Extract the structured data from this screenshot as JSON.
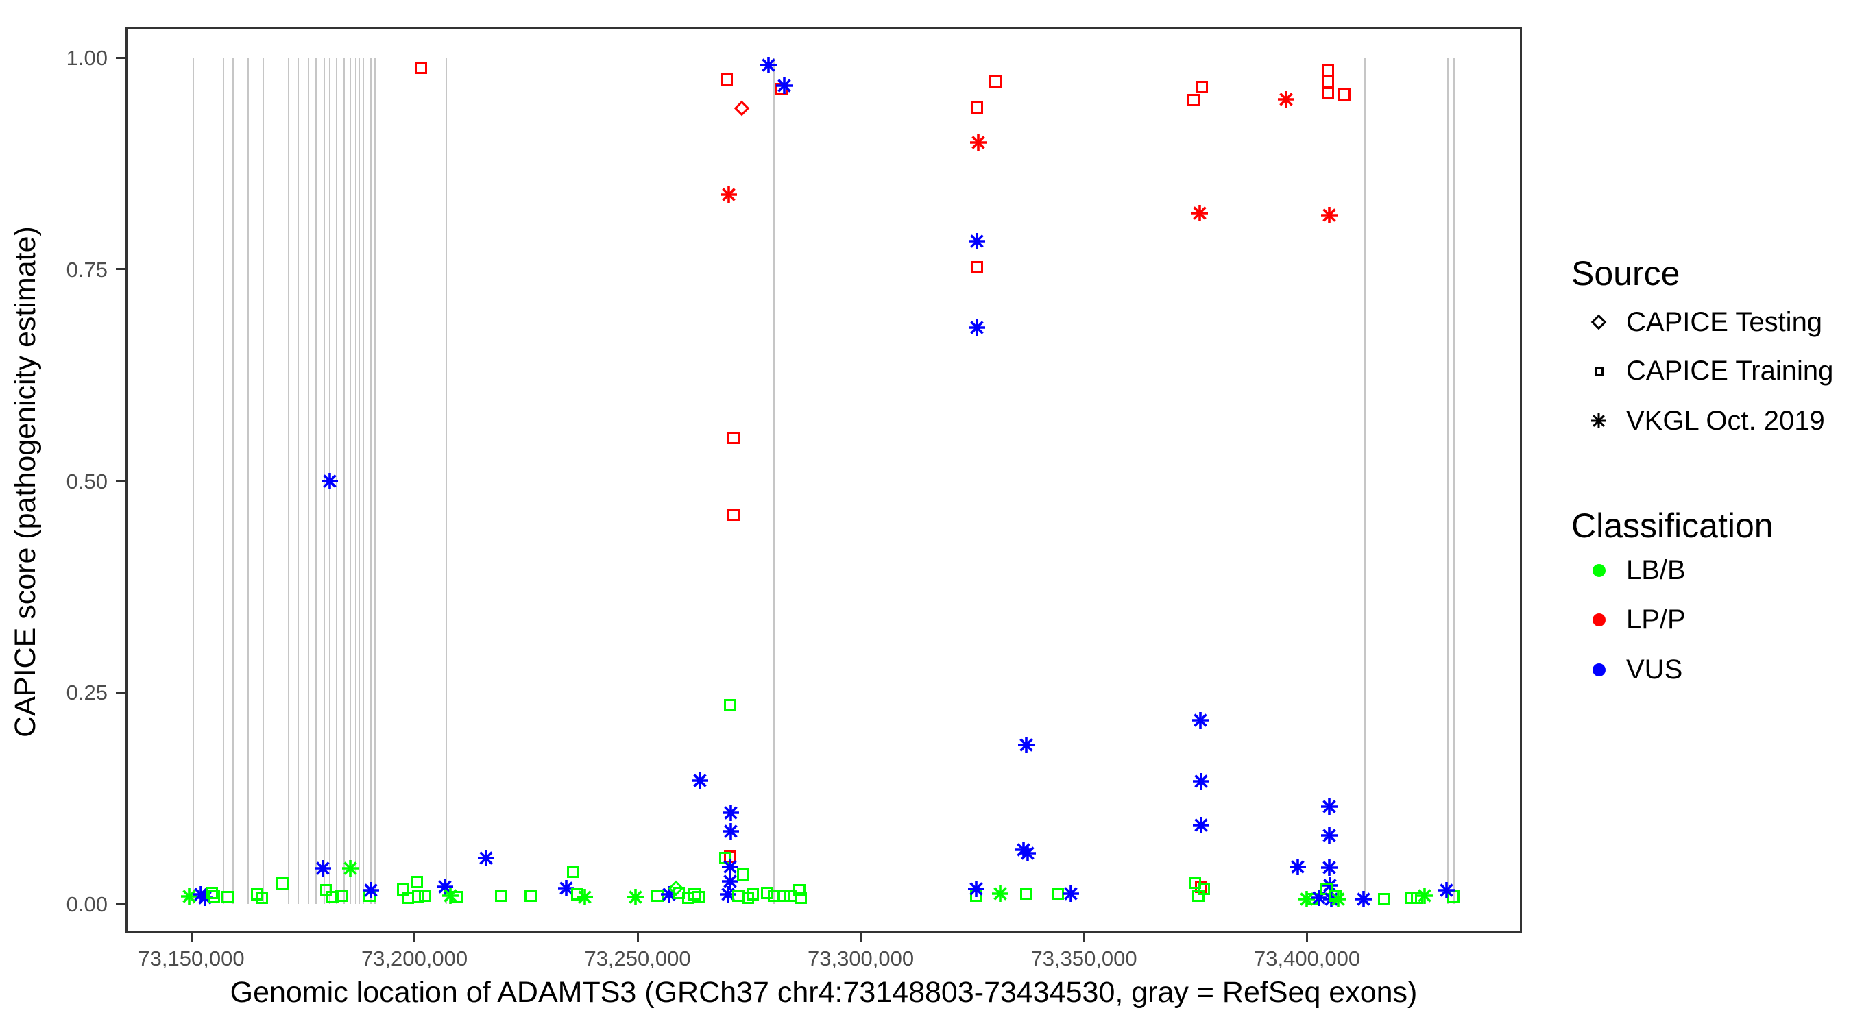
{
  "chart_data": {
    "type": "scatter",
    "title": "",
    "xlabel": "Genomic location of ADAMTS3 (GRCh37 chr4:73148803-73434530, gray = RefSeq exons)",
    "ylabel": "CAPICE score (pathogenicity estimate)",
    "xlim": [
      73134500,
      73449000
    ],
    "ylim": [
      -0.035,
      1.035
    ],
    "grid": false,
    "x_ticks": [
      {
        "value": 73150000,
        "label": "73,150,000"
      },
      {
        "value": 73200000,
        "label": "73,200,000"
      },
      {
        "value": 73250000,
        "label": "73,250,000"
      },
      {
        "value": 73300000,
        "label": "73,300,000"
      },
      {
        "value": 73350000,
        "label": "73,350,000"
      },
      {
        "value": 73400000,
        "label": "73,400,000"
      }
    ],
    "y_ticks": [
      {
        "value": 0.0,
        "label": "0.00"
      },
      {
        "value": 0.25,
        "label": "0.25"
      },
      {
        "value": 0.5,
        "label": "0.50"
      },
      {
        "value": 0.75,
        "label": "0.75"
      },
      {
        "value": 1.0,
        "label": "1.00"
      }
    ],
    "colors": {
      "LB/B": "#00ff00",
      "LP/P": "#ff0000",
      "VUS": "#0000ff",
      "exon_line": "#c6c6c6",
      "axis": "#333333",
      "tick_text": "#4d4d4d"
    },
    "shape_meaning": {
      "diamond": "CAPICE Testing",
      "square": "CAPICE Training",
      "asterisk": "VKGL Oct. 2019"
    },
    "legend": {
      "source": {
        "title": "Source",
        "items": [
          {
            "label": "CAPICE Testing",
            "shape": "diamond"
          },
          {
            "label": "CAPICE Training",
            "shape": "square"
          },
          {
            "label": "VKGL Oct. 2019",
            "shape": "asterisk"
          }
        ]
      },
      "classification": {
        "title": "Classification",
        "items": [
          {
            "label": "LB/B",
            "color": "#00ff00"
          },
          {
            "label": "LP/P",
            "color": "#ff0000"
          },
          {
            "label": "VUS",
            "color": "#0000ff"
          }
        ]
      }
    },
    "exon_lines_note": "gray vertical segments spanning score 0 to 1 = RefSeq exons",
    "exon_lines": [
      73150500,
      73157200,
      73159300,
      73162800,
      73166200,
      73171800,
      73174000,
      73176300,
      73178000,
      73179800,
      73181000,
      73182500,
      73184200,
      73185600,
      73186800,
      73187700,
      73188600,
      73190200,
      73191200,
      73207200,
      73280500,
      73413000,
      73431600,
      73433000
    ],
    "points": [
      [
        73149600,
        0.009,
        "asterisk",
        "LB/B"
      ],
      [
        73152100,
        0.011,
        "asterisk",
        "VUS"
      ],
      [
        73153000,
        0.007,
        "asterisk",
        "VUS"
      ],
      [
        73154600,
        0.013,
        "square",
        "LB/B"
      ],
      [
        73155100,
        0.009,
        "square",
        "LB/B"
      ],
      [
        73158200,
        0.008,
        "square",
        "LB/B"
      ],
      [
        73164800,
        0.011,
        "square",
        "LB/B"
      ],
      [
        73165800,
        0.007,
        "square",
        "LB/B"
      ],
      [
        73170400,
        0.024,
        "square",
        "LB/B"
      ],
      [
        73179500,
        0.042,
        "asterisk",
        "VUS"
      ],
      [
        73181070,
        0.5,
        "asterisk",
        "VUS"
      ],
      [
        73180300,
        0.016,
        "square",
        "LB/B"
      ],
      [
        73181700,
        0.008,
        "square",
        "LB/B"
      ],
      [
        73183600,
        0.01,
        "square",
        "LB/B"
      ],
      [
        73185600,
        0.042,
        "asterisk",
        "LB/B"
      ],
      [
        73190000,
        0.01,
        "square",
        "LB/B"
      ],
      [
        73190300,
        0.016,
        "asterisk",
        "VUS"
      ],
      [
        73197500,
        0.017,
        "square",
        "LB/B"
      ],
      [
        73198600,
        0.007,
        "square",
        "LB/B"
      ],
      [
        73200500,
        0.026,
        "square",
        "LB/B"
      ],
      [
        73200900,
        0.009,
        "square",
        "LB/B"
      ],
      [
        73202400,
        0.01,
        "square",
        "LB/B"
      ],
      [
        73201400,
        0.988,
        "square",
        "LP/P"
      ],
      [
        73206900,
        0.02,
        "asterisk",
        "VUS"
      ],
      [
        73208000,
        0.01,
        "asterisk",
        "LB/B"
      ],
      [
        73209600,
        0.008,
        "square",
        "LB/B"
      ],
      [
        73216000,
        0.054,
        "asterisk",
        "VUS"
      ],
      [
        73219500,
        0.01,
        "square",
        "LB/B"
      ],
      [
        73226000,
        0.01,
        "square",
        "LB/B"
      ],
      [
        73235600,
        0.038,
        "square",
        "LB/B"
      ],
      [
        73234000,
        0.019,
        "asterisk",
        "VUS"
      ],
      [
        73236500,
        0.011,
        "square",
        "LB/B"
      ],
      [
        73238200,
        0.008,
        "asterisk",
        "LB/B"
      ],
      [
        73249500,
        0.008,
        "asterisk",
        "LB/B"
      ],
      [
        73254500,
        0.01,
        "square",
        "LB/B"
      ],
      [
        73257000,
        0.011,
        "asterisk",
        "VUS"
      ],
      [
        73258600,
        0.019,
        "diamond",
        "LB/B"
      ],
      [
        73259200,
        0.013,
        "square",
        "LB/B"
      ],
      [
        73261400,
        0.007,
        "square",
        "LB/B"
      ],
      [
        73262800,
        0.011,
        "square",
        "LB/B"
      ],
      [
        73263600,
        0.008,
        "square",
        "LB/B"
      ],
      [
        73263900,
        0.146,
        "asterisk",
        "VUS"
      ],
      [
        73270800,
        0.056,
        "square",
        "LP/P"
      ],
      [
        73269700,
        0.054,
        "square",
        "LB/B"
      ],
      [
        73270900,
        0.108,
        "asterisk",
        "VUS"
      ],
      [
        73270900,
        0.086,
        "asterisk",
        "VUS"
      ],
      [
        73270800,
        0.044,
        "asterisk",
        "VUS"
      ],
      [
        73270800,
        0.027,
        "asterisk",
        "VUS"
      ],
      [
        73270200,
        0.011,
        "asterisk",
        "VUS"
      ],
      [
        73270700,
        0.235,
        "square",
        "LB/B"
      ],
      [
        73271500,
        0.551,
        "square",
        "LP/P"
      ],
      [
        73271500,
        0.46,
        "square",
        "LP/P"
      ],
      [
        73270000,
        0.974,
        "square",
        "LP/P"
      ],
      [
        73273400,
        0.94,
        "diamond",
        "LP/P"
      ],
      [
        73270400,
        0.838,
        "asterisk",
        "LP/P"
      ],
      [
        73273600,
        0.035,
        "square",
        "LB/B"
      ],
      [
        73272500,
        0.01,
        "square",
        "LB/B"
      ],
      [
        73274700,
        0.007,
        "square",
        "LB/B"
      ],
      [
        73275800,
        0.011,
        "square",
        "LB/B"
      ],
      [
        73279100,
        0.013,
        "square",
        "LB/B"
      ],
      [
        73280500,
        0.01,
        "square",
        "LB/B"
      ],
      [
        73279400,
        0.991,
        "asterisk",
        "VUS"
      ],
      [
        73282300,
        0.963,
        "square",
        "LP/P"
      ],
      [
        73282900,
        0.967,
        "asterisk",
        "VUS"
      ],
      [
        73282700,
        0.01,
        "square",
        "LB/B"
      ],
      [
        73284300,
        0.01,
        "square",
        "LB/B"
      ],
      [
        73286300,
        0.016,
        "square",
        "LB/B"
      ],
      [
        73286600,
        0.007,
        "square",
        "LB/B"
      ],
      [
        73330200,
        0.972,
        "square",
        "LP/P"
      ],
      [
        73326100,
        0.941,
        "square",
        "LP/P"
      ],
      [
        73326300,
        0.9,
        "asterisk",
        "LP/P"
      ],
      [
        73326100,
        0.783,
        "asterisk",
        "VUS"
      ],
      [
        73326100,
        0.752,
        "square",
        "LP/P"
      ],
      [
        73326000,
        0.681,
        "asterisk",
        "VUS"
      ],
      [
        73337100,
        0.188,
        "asterisk",
        "VUS"
      ],
      [
        73336500,
        0.064,
        "asterisk",
        "VUS"
      ],
      [
        73337400,
        0.06,
        "asterisk",
        "VUS"
      ],
      [
        73325900,
        0.01,
        "square",
        "LB/B"
      ],
      [
        73325900,
        0.018,
        "asterisk",
        "VUS"
      ],
      [
        73331250,
        0.012,
        "asterisk",
        "LB/B"
      ],
      [
        73337100,
        0.012,
        "square",
        "LB/B"
      ],
      [
        73344200,
        0.012,
        "square",
        "LB/B"
      ],
      [
        73347000,
        0.012,
        "asterisk",
        "VUS"
      ],
      [
        73376400,
        0.965,
        "square",
        "LP/P"
      ],
      [
        73374500,
        0.95,
        "square",
        "LP/P"
      ],
      [
        73376000,
        0.816,
        "asterisk",
        "LP/P"
      ],
      [
        73376100,
        0.217,
        "asterisk",
        "VUS"
      ],
      [
        73376200,
        0.145,
        "asterisk",
        "VUS"
      ],
      [
        73376200,
        0.093,
        "asterisk",
        "VUS"
      ],
      [
        73376300,
        0.02,
        "square",
        "LP/P"
      ],
      [
        73374800,
        0.025,
        "square",
        "LB/B"
      ],
      [
        73376900,
        0.018,
        "square",
        "LB/B"
      ],
      [
        73375600,
        0.01,
        "square",
        "LB/B"
      ],
      [
        73395300,
        0.951,
        "asterisk",
        "LP/P"
      ],
      [
        73404600,
        0.985,
        "square",
        "LP/P"
      ],
      [
        73404600,
        0.972,
        "square",
        "LP/P"
      ],
      [
        73404600,
        0.958,
        "square",
        "LP/P"
      ],
      [
        73408400,
        0.956,
        "square",
        "LP/P"
      ],
      [
        73405000,
        0.814,
        "asterisk",
        "LP/P"
      ],
      [
        73397900,
        0.044,
        "asterisk",
        "VUS"
      ],
      [
        73404900,
        0.115,
        "asterisk",
        "VUS"
      ],
      [
        73405000,
        0.081,
        "asterisk",
        "VUS"
      ],
      [
        73404900,
        0.043,
        "asterisk",
        "VUS"
      ],
      [
        73405100,
        0.022,
        "asterisk",
        "VUS"
      ],
      [
        73399900,
        0.006,
        "asterisk",
        "LB/B"
      ],
      [
        73401200,
        0.006,
        "square",
        "LB/B"
      ],
      [
        73402700,
        0.007,
        "asterisk",
        "VUS"
      ],
      [
        73404300,
        0.018,
        "square",
        "LB/B"
      ],
      [
        73405400,
        0.006,
        "asterisk",
        "VUS"
      ],
      [
        73406300,
        0.01,
        "square",
        "LB/B"
      ],
      [
        73406900,
        0.006,
        "asterisk",
        "LB/B"
      ],
      [
        73412700,
        0.006,
        "asterisk",
        "VUS"
      ],
      [
        73417300,
        0.006,
        "square",
        "LB/B"
      ],
      [
        73423200,
        0.007,
        "square",
        "LB/B"
      ],
      [
        73424600,
        0.007,
        "square",
        "LB/B"
      ],
      [
        73426300,
        0.01,
        "asterisk",
        "LB/B"
      ],
      [
        73432800,
        0.009,
        "square",
        "LB/B"
      ],
      [
        73431300,
        0.016,
        "asterisk",
        "VUS"
      ]
    ]
  }
}
